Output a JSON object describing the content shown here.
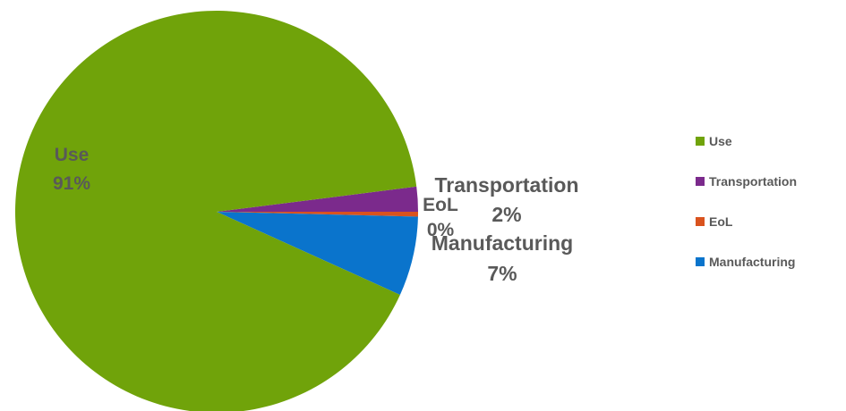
{
  "chart_data": {
    "type": "pie",
    "title": "",
    "categories": [
      "Use",
      "Transportation",
      "EoL",
      "Manufacturing"
    ],
    "values": [
      91,
      2,
      0,
      7
    ],
    "data_labels": [
      {
        "category": "Use",
        "percent": "91%"
      },
      {
        "category": "Transportation",
        "percent": "2%"
      },
      {
        "category": "EoL",
        "percent": "0%"
      },
      {
        "category": "Manufacturing",
        "percent": "7%"
      }
    ],
    "colors": [
      "#70A30A",
      "#7B2A8C",
      "#D9531E",
      "#0A74CC"
    ],
    "legend": {
      "position": "right",
      "entries": [
        "Use",
        "Transportation",
        "EoL",
        "Manufacturing"
      ]
    }
  }
}
